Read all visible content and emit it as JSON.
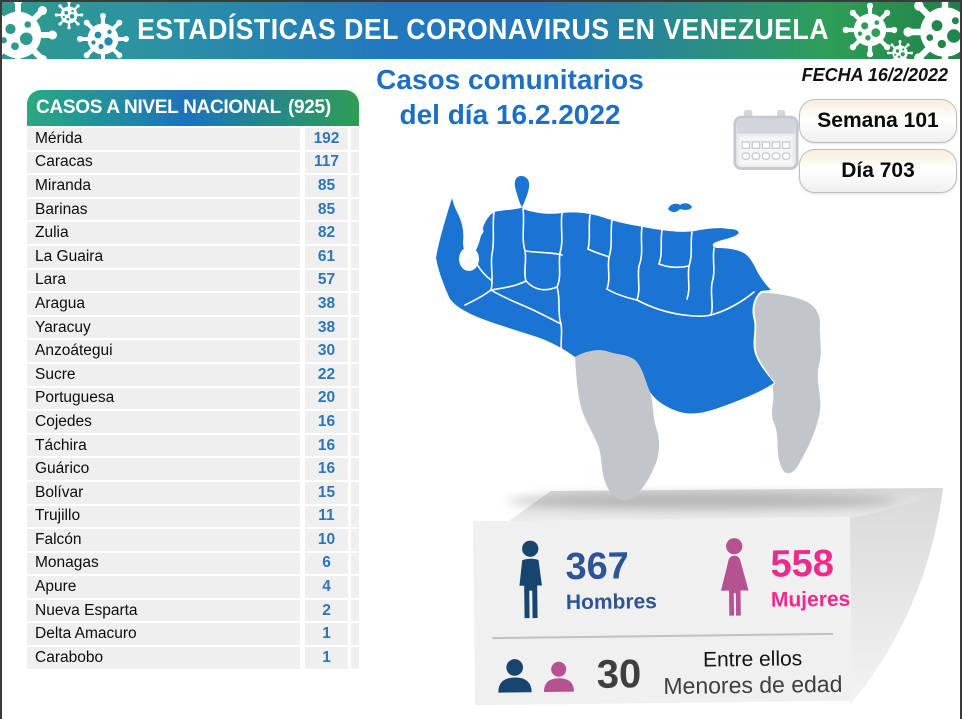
{
  "banner": {
    "title": "ESTADÍSTICAS DEL CORONAVIRUS EN VENEZUELA"
  },
  "header": {
    "date_label": "FECHA 16/2/2022"
  },
  "main_title": {
    "line1": "Casos comunitarios",
    "line2": "del día 16.2.2022"
  },
  "badges": {
    "week": "Semana 101",
    "day": "Día 703"
  },
  "table": {
    "title": "CASOS A NIVEL NACIONAL",
    "total": "(925)",
    "rows": [
      [
        "Mérida",
        192
      ],
      [
        "Caracas",
        117
      ],
      [
        "Miranda",
        85
      ],
      [
        "Barinas",
        85
      ],
      [
        "Zulia",
        82
      ],
      [
        "La Guaira",
        61
      ],
      [
        "Lara",
        57
      ],
      [
        "Aragua",
        38
      ],
      [
        "Yaracuy",
        38
      ],
      [
        "Anzoátegui",
        30
      ],
      [
        "Sucre",
        22
      ],
      [
        "Portuguesa",
        20
      ],
      [
        "Cojedes",
        16
      ],
      [
        "Táchira",
        16
      ],
      [
        "Guárico",
        16
      ],
      [
        "Bolívar",
        15
      ],
      [
        "Trujillo",
        11
      ],
      [
        "Falcón",
        10
      ],
      [
        "Monagas",
        6
      ],
      [
        "Apure",
        4
      ],
      [
        "Nueva Esparta",
        2
      ],
      [
        "Delta Amacuro",
        1
      ],
      [
        "Carabobo",
        1
      ]
    ]
  },
  "stats": {
    "men": {
      "value": "367",
      "label": "Hombres"
    },
    "women": {
      "value": "558",
      "label": "Mujeres"
    },
    "minors": {
      "value": "30",
      "label_top": "Entre ellos",
      "label_bottom": "Menores de edad"
    }
  },
  "icons": [
    "virus-icon",
    "calendar-icon",
    "man-icon",
    "woman-icon",
    "man-bust-icon",
    "woman-bust-icon"
  ],
  "colors": {
    "banner_teal": "#2f9a8e",
    "banner_blue": "#2278be",
    "banner_green": "#2f9e58",
    "title_blue": "#1e6fc4",
    "table_number_blue": "#2e75b6",
    "map_blue": "#1b74d2",
    "map_gray": "#c2c6ca",
    "men_navy": "#17456e",
    "men_text": "#2f5496",
    "women_plum": "#b4538f",
    "women_pink": "#ee2a8c",
    "minors_gray": "#3f3f3f",
    "panel_bg": "#f0f0f0"
  },
  "chart_data": {
    "type": "table",
    "title": "CASOS A NIVEL NACIONAL (925)",
    "subtitle": "Casos comunitarios del día 16.2.2022",
    "categories": [
      "Mérida",
      "Caracas",
      "Miranda",
      "Barinas",
      "Zulia",
      "La Guaira",
      "Lara",
      "Aragua",
      "Yaracuy",
      "Anzoátegui",
      "Sucre",
      "Portuguesa",
      "Cojedes",
      "Táchira",
      "Guárico",
      "Bolívar",
      "Trujillo",
      "Falcón",
      "Monagas",
      "Apure",
      "Nueva Esparta",
      "Delta Amacuro",
      "Carabobo"
    ],
    "values": [
      192,
      117,
      85,
      85,
      82,
      61,
      57,
      38,
      38,
      30,
      22,
      20,
      16,
      16,
      16,
      15,
      11,
      10,
      6,
      4,
      2,
      1,
      1
    ],
    "annotations": {
      "total_cases": 925,
      "fecha": "16/2/2022",
      "semana": 101,
      "dia": 703,
      "hombres": 367,
      "mujeres": 558,
      "menores_de_edad": 30
    }
  }
}
